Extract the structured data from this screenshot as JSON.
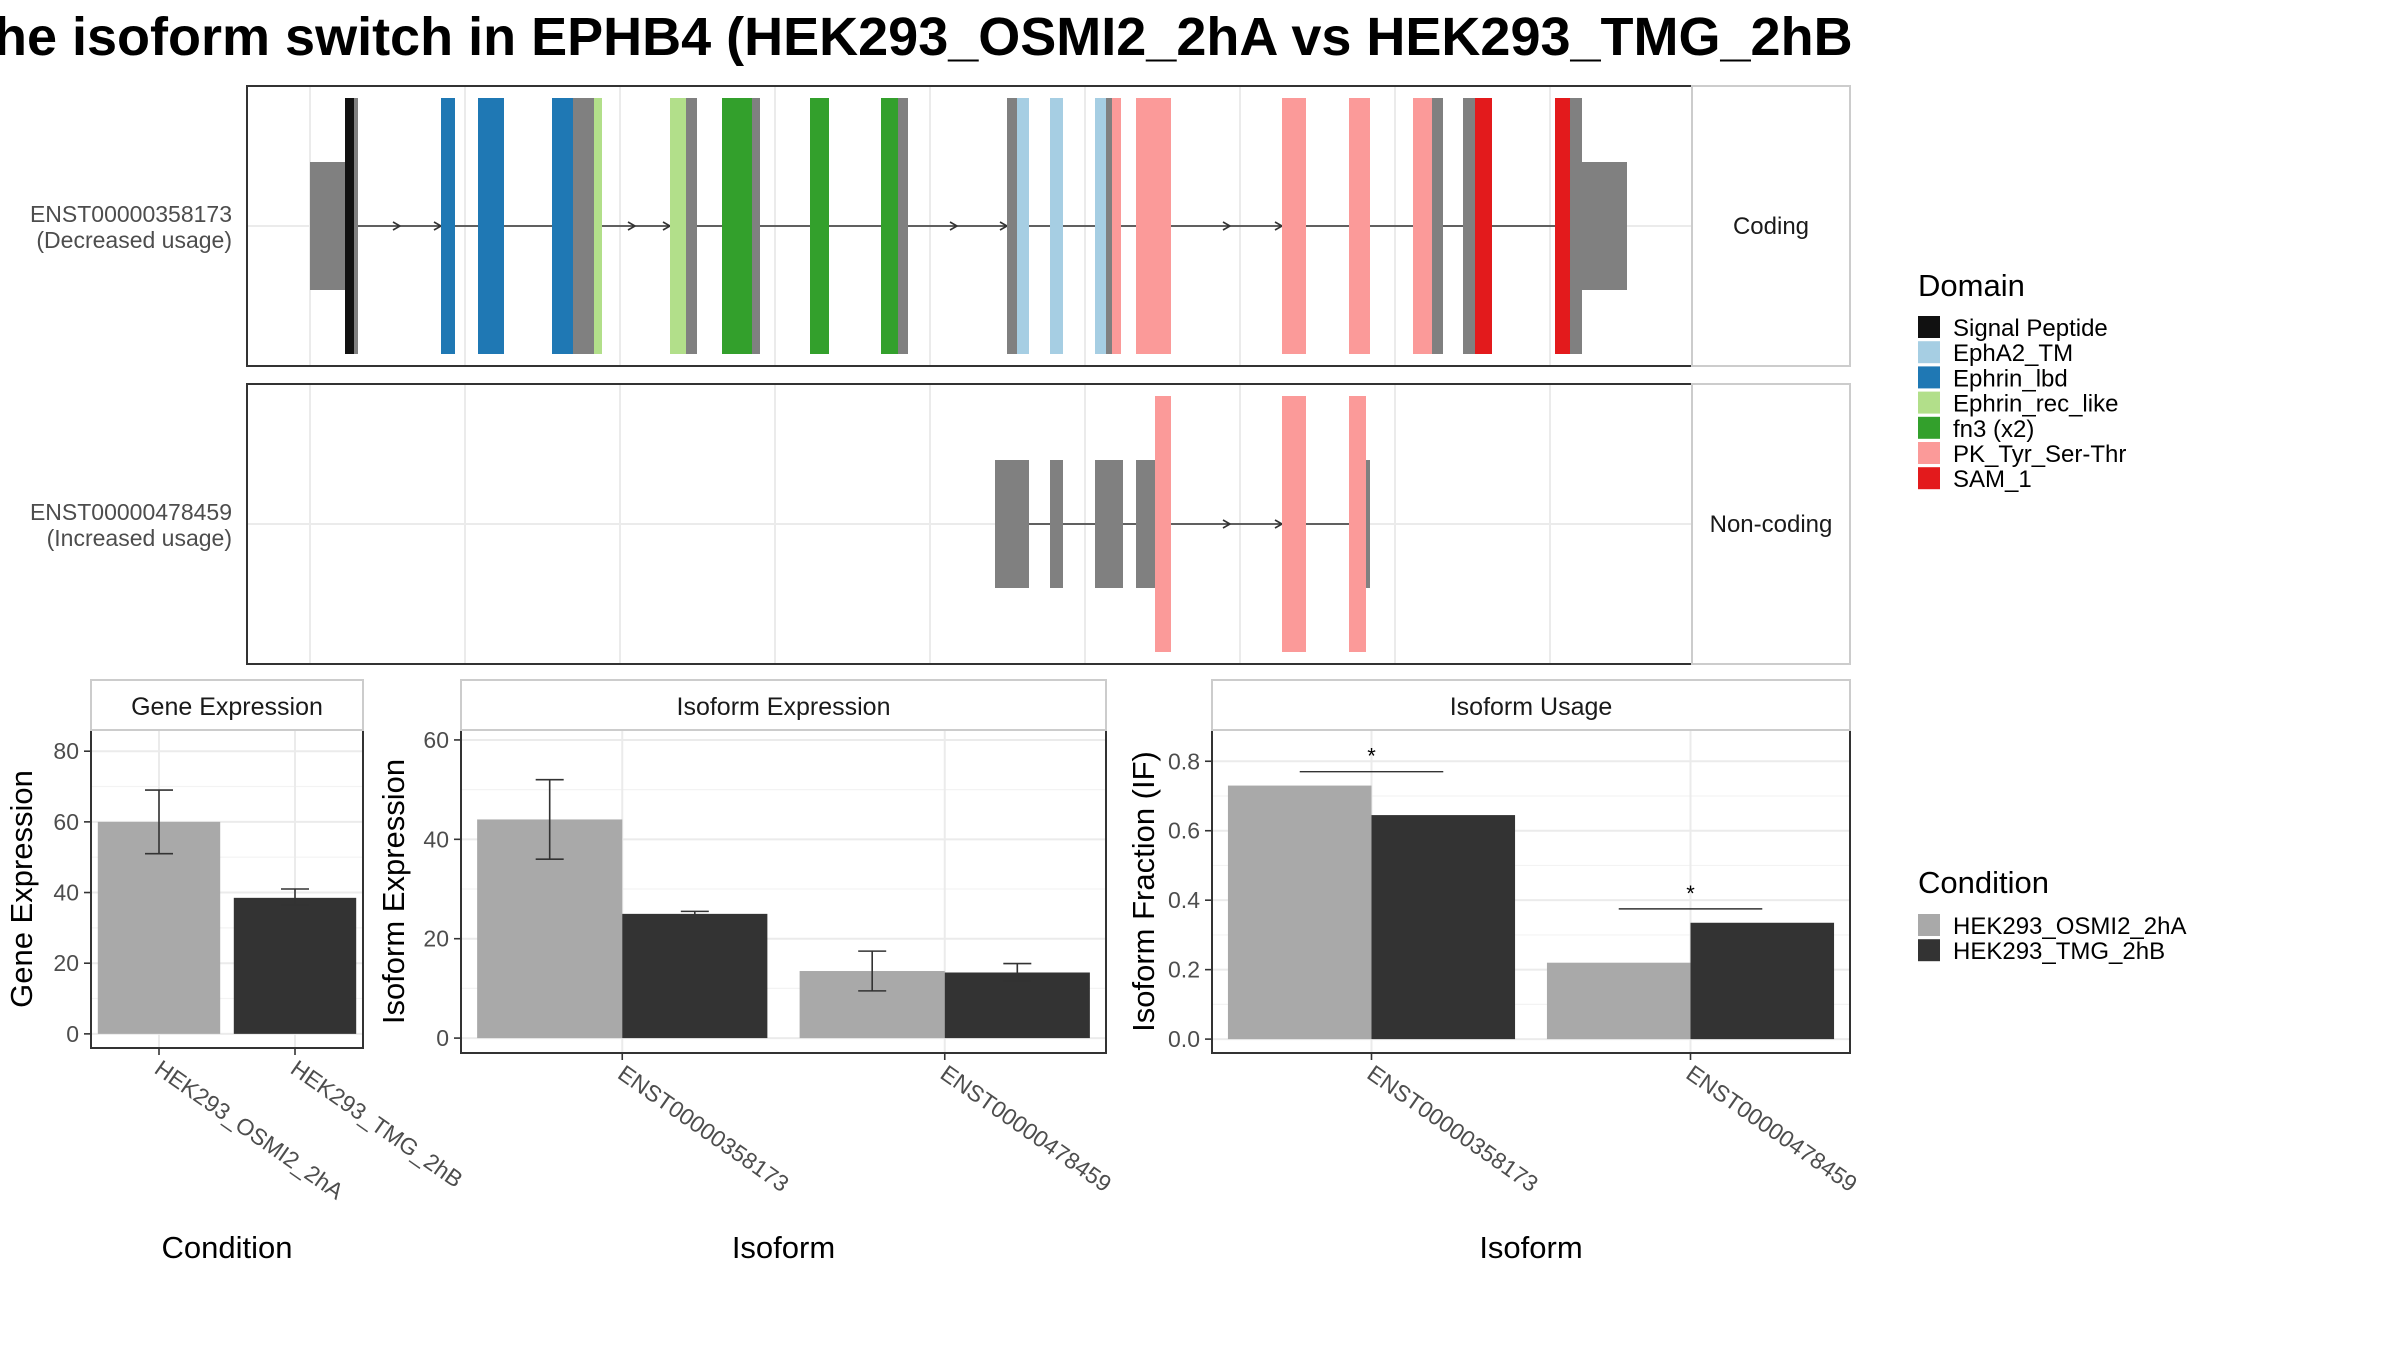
{
  "title": "he isoform switch in EPHB4 (HEK293_OSMI2_2hA vs HEK293_TMG_2hB",
  "colors": {
    "gray_bar": "#a9a9a9",
    "dark_bar": "#333333",
    "exon_gray": "#808080",
    "grid": "#ebebeb",
    "strip_fill": "#ffffff",
    "panel_border": "#333333"
  },
  "transcript_panel": {
    "transcripts": [
      {
        "label_line1": "ENST00000358173",
        "label_line2": "(Decreased usage)",
        "facet": "Coding"
      },
      {
        "label_line1": "ENST00000478459",
        "label_line2": "(Increased usage)",
        "facet": "Non-coding"
      }
    ],
    "domain_legend_title": "Domain",
    "domains": [
      {
        "name": "Signal Peptide",
        "color": "#111111"
      },
      {
        "name": "EphA2_TM",
        "color": "#a6cee3"
      },
      {
        "name": "Ephrin_lbd",
        "color": "#1f78b4"
      },
      {
        "name": "Ephrin_rec_like",
        "color": "#b2df8a"
      },
      {
        "name": "fn3 (x2)",
        "color": "#33a02c"
      },
      {
        "name": "PK_Tyr_Ser-Thr",
        "color": "#fb9a99"
      },
      {
        "name": "SAM_1",
        "color": "#e31a1c"
      }
    ]
  },
  "condition_legend": {
    "title": "Condition",
    "items": [
      {
        "name": "HEK293_OSMI2_2hA",
        "color": "#a9a9a9"
      },
      {
        "name": "HEK293_TMG_2hB",
        "color": "#333333"
      }
    ]
  },
  "chart_data": [
    {
      "type": "bar",
      "title": "Gene Expression",
      "xlabel": "Condition",
      "ylabel": "Gene Expression",
      "categories": [
        "HEK293_OSMI2_2hA",
        "HEK293_TMG_2hB"
      ],
      "values": [
        60,
        38.5
      ],
      "error": [
        [
          51,
          69
        ],
        [
          36.5,
          41
        ]
      ],
      "ylim": [
        -4,
        86
      ],
      "yticks": [
        "0",
        "20",
        "40",
        "60",
        "80"
      ],
      "grid": true
    },
    {
      "type": "bar",
      "title": "Isoform Expression",
      "xlabel": "Isoform",
      "ylabel": "Isoform Expression",
      "categories": [
        "ENST00000358173",
        "ENST00000478459"
      ],
      "series": [
        {
          "name": "HEK293_OSMI2_2hA",
          "values": [
            44,
            13.5
          ],
          "error": [
            [
              36,
              52
            ],
            [
              9.5,
              17.5
            ]
          ]
        },
        {
          "name": "HEK293_TMG_2hB",
          "values": [
            25,
            13.2
          ],
          "error": [
            [
              24.5,
              25.5
            ],
            [
              11.5,
              15
            ]
          ]
        }
      ],
      "ylim": [
        -3,
        62
      ],
      "yticks": [
        "0",
        "20",
        "40",
        "60"
      ],
      "grid": true
    },
    {
      "type": "bar",
      "title": "Isoform Usage",
      "xlabel": "Isoform",
      "ylabel": "Isoform Fraction (IF)",
      "categories": [
        "ENST00000358173",
        "ENST00000478459"
      ],
      "series": [
        {
          "name": "HEK293_OSMI2_2hA",
          "values": [
            0.73,
            0.22
          ]
        },
        {
          "name": "HEK293_TMG_2hB",
          "values": [
            0.645,
            0.335
          ]
        }
      ],
      "significance": [
        {
          "category": "ENST00000358173",
          "marker": "*",
          "y": 0.77
        },
        {
          "category": "ENST00000478459",
          "marker": "*",
          "y": 0.375
        }
      ],
      "ylim": [
        -0.04,
        0.89
      ],
      "yticks": [
        "0.0",
        "0.2",
        "0.4",
        "0.6",
        "0.8"
      ],
      "grid": true
    }
  ]
}
